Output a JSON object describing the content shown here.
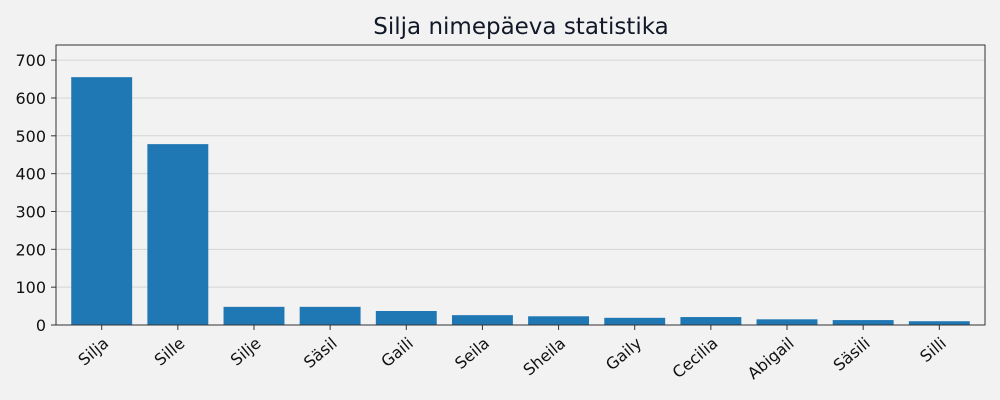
{
  "chart_data": {
    "type": "bar",
    "title": "Silja nimepäeva statistika",
    "xlabel": "",
    "ylabel": "",
    "categories": [
      "Silja",
      "Sille",
      "Silje",
      "Säsil",
      "Gaili",
      "Seila",
      "Sheila",
      "Gaily",
      "Cecilia",
      "Abigail",
      "Säsili",
      "Silli"
    ],
    "values": [
      655,
      478,
      48,
      48,
      37,
      26,
      23,
      19,
      21,
      15,
      13,
      10
    ],
    "ylim": [
      0,
      740
    ],
    "yticks": [
      0,
      100,
      200,
      300,
      400,
      500,
      600,
      700
    ],
    "grid": "horizontal",
    "bar_color": "#1f77b4",
    "background_color": "#f2f2f2",
    "grid_color": "#d5d5d5",
    "axis_color": "#333333"
  }
}
